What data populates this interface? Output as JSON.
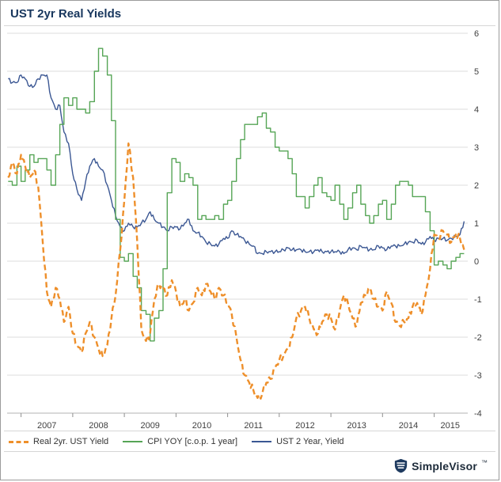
{
  "header": {
    "title": "UST 2yr Real Yields"
  },
  "footer": {
    "brand": "SimpleVisor",
    "trademark": "™"
  },
  "colors": {
    "title_text": "#17365d",
    "frame_border": "#9b9b9b",
    "separator": "#d6d6d6"
  },
  "chart_data": {
    "type": "line",
    "title": "UST 2yr Real Yields",
    "xlabel": "",
    "ylabel": "",
    "x_range": [
      2006.73,
      2015.65
    ],
    "y_range": [
      -4,
      6
    ],
    "y_axis_side": "right",
    "grid": "horizontal",
    "grid_color": "#dcdcdc",
    "axis_text_color": "#3f3f3f",
    "legend_position": "bottom-left",
    "y_ticks": [
      6,
      5,
      4,
      3,
      2,
      1,
      0,
      -1,
      -2,
      -3,
      -4
    ],
    "x_ticks": [
      {
        "pos": 2007,
        "label": "2007"
      },
      {
        "pos": 2008,
        "label": "2008"
      },
      {
        "pos": 2009,
        "label": "2009"
      },
      {
        "pos": 2010,
        "label": "2010"
      },
      {
        "pos": 2011,
        "label": "2011"
      },
      {
        "pos": 2012,
        "label": "2012"
      },
      {
        "pos": 2013,
        "label": "2013"
      },
      {
        "pos": 2014,
        "label": "2014"
      },
      {
        "pos": 2015,
        "label": "2015"
      }
    ],
    "x": [
      2006.75,
      2006.83,
      2006.92,
      2007.0,
      2007.08,
      2007.17,
      2007.25,
      2007.33,
      2007.42,
      2007.5,
      2007.58,
      2007.67,
      2007.75,
      2007.83,
      2007.92,
      2008.0,
      2008.08,
      2008.17,
      2008.25,
      2008.33,
      2008.42,
      2008.5,
      2008.58,
      2008.67,
      2008.75,
      2008.83,
      2008.92,
      2009.0,
      2009.08,
      2009.17,
      2009.25,
      2009.33,
      2009.42,
      2009.5,
      2009.58,
      2009.67,
      2009.75,
      2009.83,
      2009.92,
      2010.0,
      2010.08,
      2010.17,
      2010.25,
      2010.33,
      2010.42,
      2010.5,
      2010.58,
      2010.67,
      2010.75,
      2010.83,
      2010.92,
      2011.0,
      2011.08,
      2011.17,
      2011.25,
      2011.33,
      2011.42,
      2011.5,
      2011.58,
      2011.67,
      2011.75,
      2011.83,
      2011.92,
      2012.0,
      2012.08,
      2012.17,
      2012.25,
      2012.33,
      2012.42,
      2012.5,
      2012.58,
      2012.67,
      2012.75,
      2012.83,
      2012.92,
      2013.0,
      2013.08,
      2013.17,
      2013.25,
      2013.33,
      2013.42,
      2013.5,
      2013.58,
      2013.67,
      2013.75,
      2013.83,
      2013.92,
      2014.0,
      2014.08,
      2014.17,
      2014.25,
      2014.33,
      2014.42,
      2014.5,
      2014.58,
      2014.67,
      2014.75,
      2014.83,
      2014.92,
      2015.0,
      2015.08,
      2015.17,
      2015.25,
      2015.33,
      2015.42,
      2015.5,
      2015.58
    ],
    "series": [
      {
        "id": "real-2yr-ust-yield",
        "name": "Real 2yr. UST Yield",
        "color": "#ee8f2a",
        "style": "dashed",
        "values": [
          2.2,
          2.6,
          2.3,
          2.8,
          2.5,
          2.2,
          2.4,
          2.0,
          0.5,
          -0.8,
          -1.2,
          -0.7,
          -1.0,
          -1.6,
          -1.2,
          -1.9,
          -2.2,
          -2.4,
          -1.9,
          -1.6,
          -2.0,
          -2.3,
          -2.5,
          -2.2,
          -1.5,
          -0.9,
          0.3,
          1.6,
          3.1,
          2.2,
          0.5,
          -1.8,
          -2.1,
          -1.9,
          -1.0,
          -0.6,
          -0.7,
          -0.9,
          -0.5,
          -0.8,
          -1.2,
          -1.0,
          -1.3,
          -1.1,
          -0.7,
          -0.9,
          -0.6,
          -0.8,
          -1.0,
          -0.7,
          -0.9,
          -1.1,
          -1.4,
          -2.0,
          -2.6,
          -3.0,
          -3.2,
          -3.4,
          -3.6,
          -3.5,
          -3.2,
          -3.1,
          -2.8,
          -2.6,
          -2.5,
          -2.3,
          -2.0,
          -1.5,
          -1.3,
          -1.2,
          -1.5,
          -1.8,
          -1.9,
          -1.6,
          -1.4,
          -1.5,
          -1.8,
          -1.3,
          -0.9,
          -1.1,
          -1.5,
          -1.7,
          -1.1,
          -0.9,
          -0.7,
          -1.0,
          -1.2,
          -1.3,
          -0.8,
          -1.1,
          -1.6,
          -1.7,
          -1.6,
          -1.5,
          -1.2,
          -1.1,
          -1.4,
          -0.9,
          -0.2,
          0.7,
          0.6,
          0.8,
          0.7,
          0.5,
          0.7,
          0.6,
          0.3
        ]
      },
      {
        "id": "cpi-yoy",
        "name": "CPI YOY [c.o.p. 1 year]",
        "color": "#56a556",
        "style": "step",
        "values": [
          2.1,
          2.0,
          2.5,
          2.1,
          2.4,
          2.8,
          2.6,
          2.7,
          2.7,
          2.4,
          2.0,
          2.8,
          3.6,
          4.3,
          4.1,
          4.3,
          4.0,
          4.0,
          3.9,
          4.2,
          5.0,
          5.6,
          5.4,
          4.9,
          3.7,
          1.1,
          0.1,
          0.0,
          0.2,
          -0.4,
          -0.7,
          -1.3,
          -1.4,
          -2.1,
          -1.5,
          -1.3,
          -0.2,
          1.8,
          2.7,
          2.6,
          2.1,
          2.3,
          2.2,
          2.0,
          1.1,
          1.2,
          1.1,
          1.1,
          1.2,
          1.1,
          1.5,
          1.6,
          2.1,
          2.7,
          3.2,
          3.6,
          3.6,
          3.6,
          3.8,
          3.9,
          3.5,
          3.4,
          3.0,
          2.9,
          2.9,
          2.7,
          2.3,
          1.7,
          1.7,
          1.4,
          1.7,
          2.0,
          2.2,
          1.8,
          1.7,
          1.6,
          2.0,
          1.5,
          1.1,
          1.4,
          1.8,
          2.0,
          1.5,
          1.2,
          1.0,
          1.2,
          1.5,
          1.6,
          1.1,
          1.5,
          2.0,
          2.1,
          2.1,
          2.0,
          1.7,
          1.7,
          1.7,
          1.3,
          0.8,
          -0.1,
          0.0,
          -0.1,
          -0.2,
          0.0,
          0.1,
          0.2,
          0.2
        ]
      },
      {
        "id": "ust-2-year-yield",
        "name": "UST 2 Year, Yield",
        "color": "#3b5793",
        "style": "solid",
        "values": [
          4.8,
          4.7,
          4.7,
          4.9,
          4.8,
          4.6,
          4.6,
          4.8,
          4.9,
          4.9,
          4.3,
          4.0,
          4.1,
          3.4,
          3.1,
          2.3,
          1.9,
          1.6,
          2.1,
          2.5,
          2.7,
          2.5,
          2.4,
          2.0,
          1.6,
          1.2,
          0.9,
          0.8,
          1.0,
          0.9,
          0.9,
          1.0,
          1.1,
          1.3,
          1.1,
          1.0,
          0.9,
          0.8,
          0.9,
          0.9,
          0.85,
          1.0,
          1.1,
          0.8,
          0.75,
          0.65,
          0.5,
          0.45,
          0.4,
          0.45,
          0.6,
          0.6,
          0.8,
          0.7,
          0.65,
          0.55,
          0.45,
          0.4,
          0.2,
          0.2,
          0.25,
          0.25,
          0.25,
          0.25,
          0.3,
          0.35,
          0.3,
          0.3,
          0.3,
          0.25,
          0.25,
          0.25,
          0.3,
          0.25,
          0.25,
          0.25,
          0.25,
          0.25,
          0.2,
          0.3,
          0.35,
          0.3,
          0.4,
          0.35,
          0.3,
          0.3,
          0.4,
          0.35,
          0.3,
          0.4,
          0.4,
          0.4,
          0.45,
          0.5,
          0.5,
          0.55,
          0.45,
          0.5,
          0.65,
          0.55,
          0.6,
          0.6,
          0.55,
          0.6,
          0.65,
          0.7,
          1.05
        ]
      }
    ]
  }
}
